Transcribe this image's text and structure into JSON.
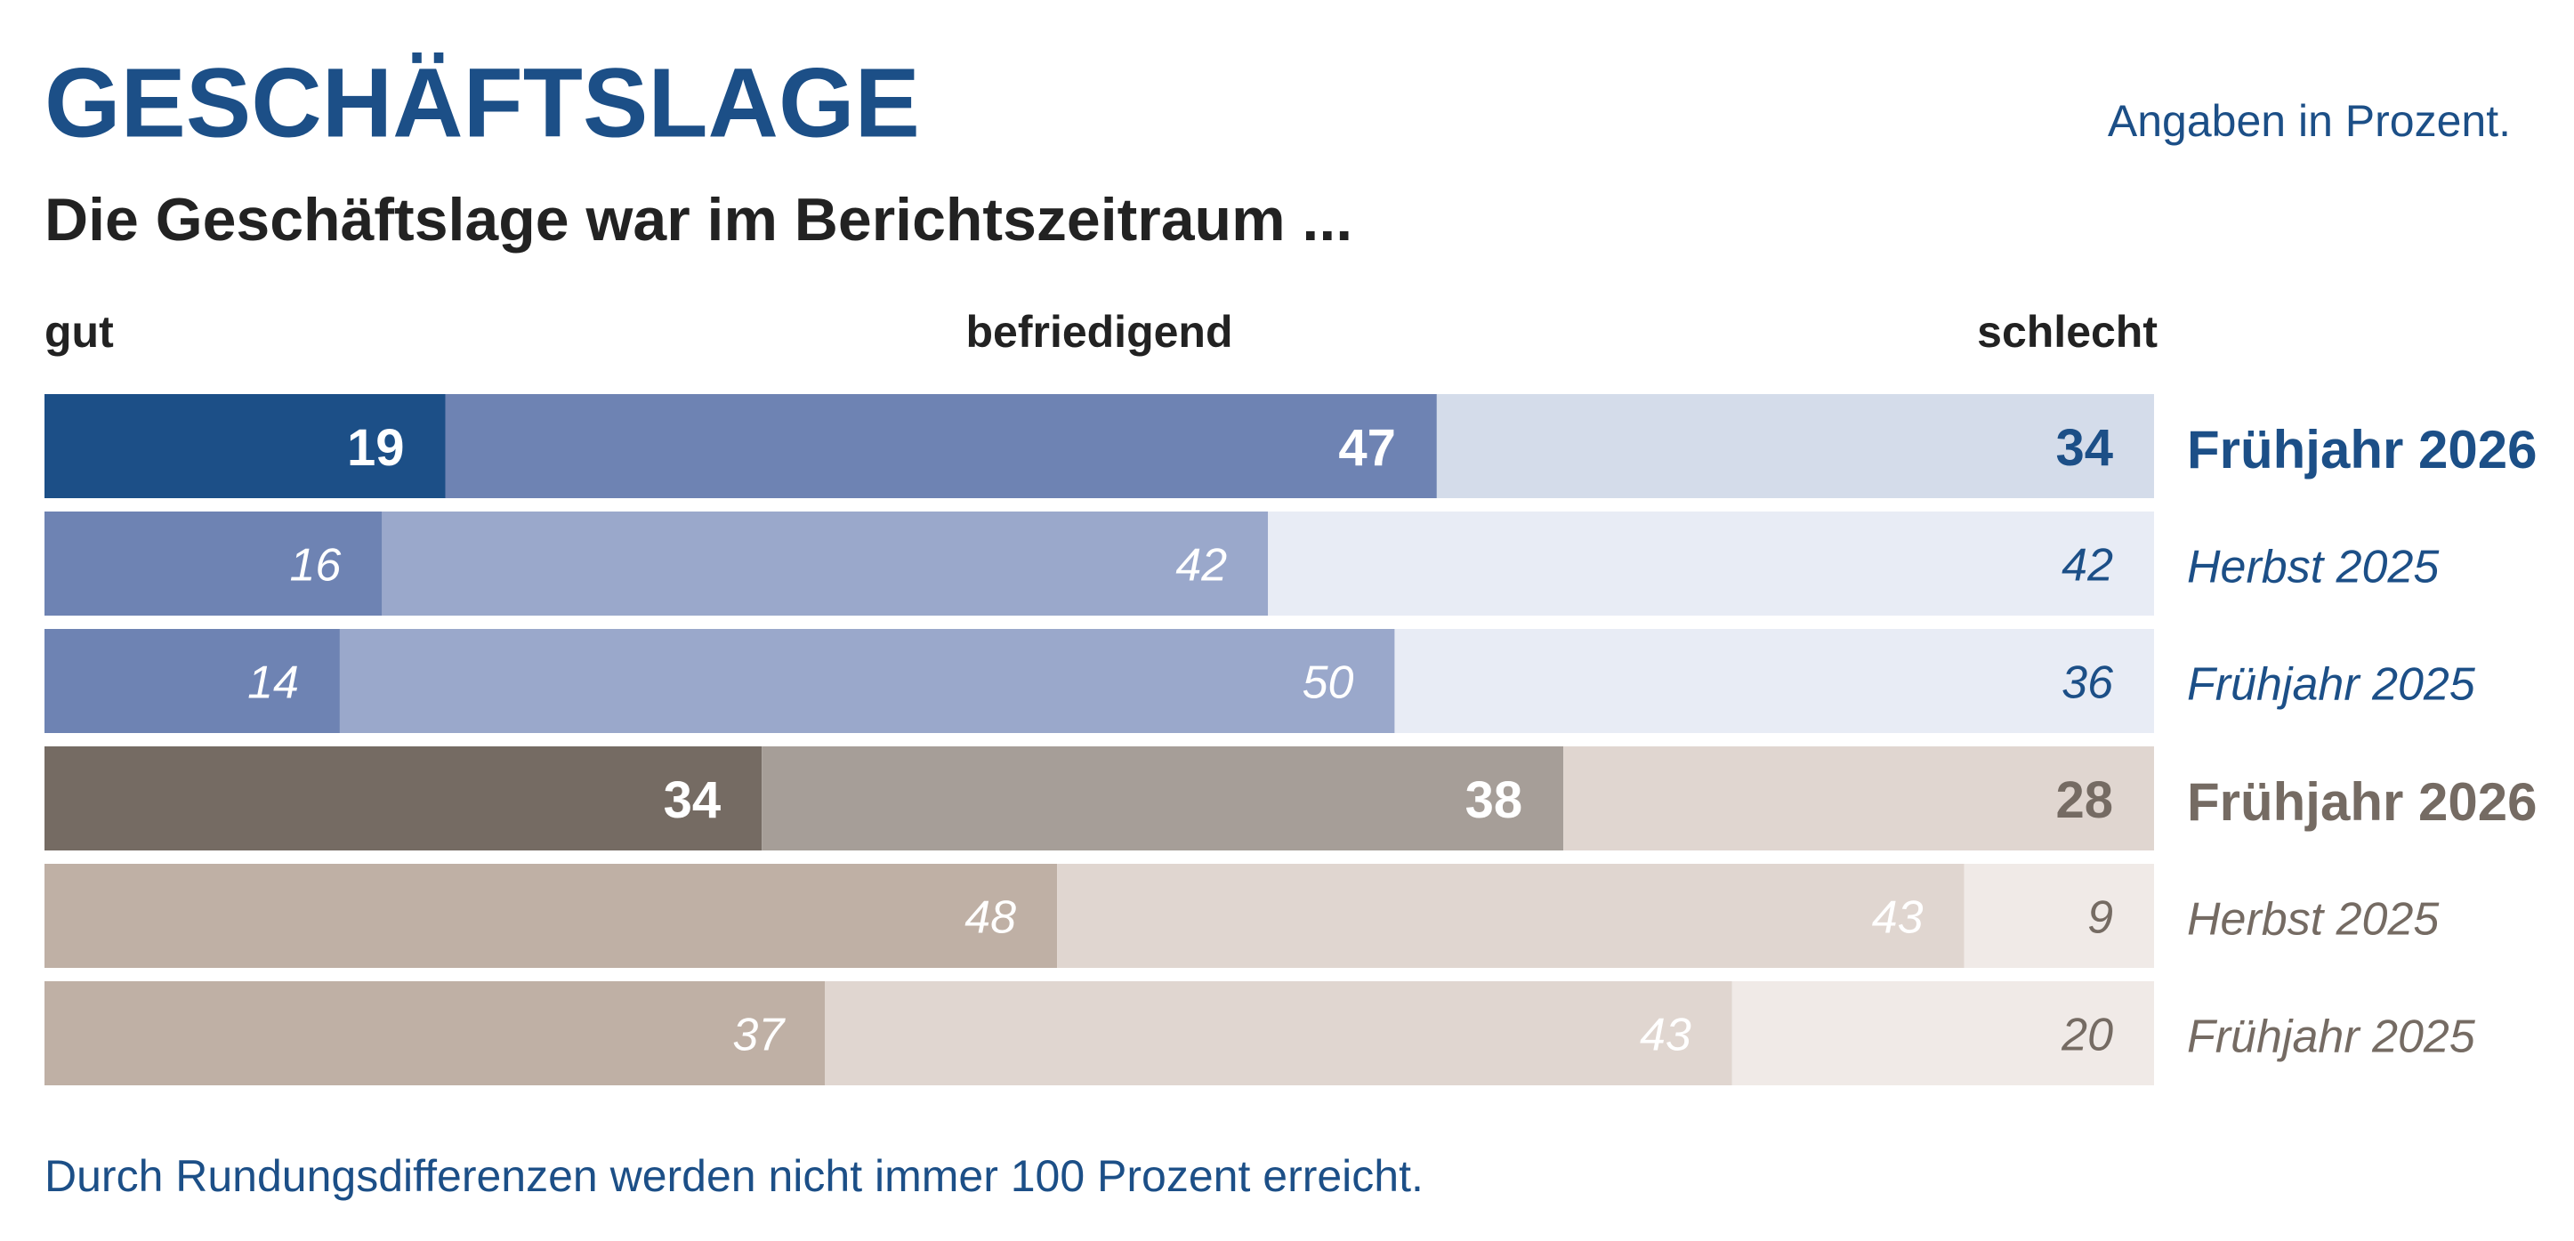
{
  "chart_data": {
    "type": "stacked-bar-horizontal",
    "title": "GESCHÄFTSLAGE",
    "subtitle": "Die Geschäftslage war im Berichtszeitraum ...",
    "unit_note": "Angaben in Prozent.",
    "footnote": "Durch Rundungsdifferenzen werden nicht immer 100 Prozent erreicht.",
    "xlim": [
      0,
      100
    ],
    "categories": [
      "Frühjahr 2026",
      "Herbst 2025",
      "Frühjahr 2025",
      "Frühjahr 2026",
      "Herbst 2025",
      "Frühjahr 2025"
    ],
    "category_colors": [
      "#1c4f87",
      "#1c4f87",
      "#1c4f87",
      "#756b63",
      "#756b63",
      "#756b63"
    ],
    "category_bold": [
      true,
      false,
      false,
      true,
      false,
      false
    ],
    "series": [
      {
        "name": "gut",
        "values": [
          19,
          16,
          14,
          34,
          48,
          37
        ],
        "colors": [
          "#1c4f87",
          "#6e83b3",
          "#6e83b3",
          "#756b63",
          "#bfb0a5",
          "#bfb0a5"
        ],
        "label_colors": [
          "#ffffff",
          "#ffffff",
          "#ffffff",
          "#ffffff",
          "#ffffff",
          "#ffffff"
        ]
      },
      {
        "name": "befriedigend",
        "values": [
          47,
          42,
          50,
          38,
          43,
          43
        ],
        "colors": [
          "#6e83b3",
          "#9aa8cb",
          "#9aa8cb",
          "#a69e98",
          "#e0d6d0",
          "#e0d6d0"
        ],
        "label_colors": [
          "#ffffff",
          "#ffffff",
          "#ffffff",
          "#ffffff",
          "#ffffff",
          "#ffffff"
        ]
      },
      {
        "name": "schlecht",
        "values": [
          34,
          42,
          36,
          28,
          9,
          20
        ],
        "colors": [
          "#d4dcea",
          "#e8ecf5",
          "#e8ecf5",
          "#e0d6d0",
          "#f0eae7",
          "#f0eae7"
        ],
        "label_colors": [
          "#1c4f87",
          "#1c4f87",
          "#1c4f87",
          "#756b63",
          "#756b63",
          "#756b63"
        ]
      }
    ]
  }
}
